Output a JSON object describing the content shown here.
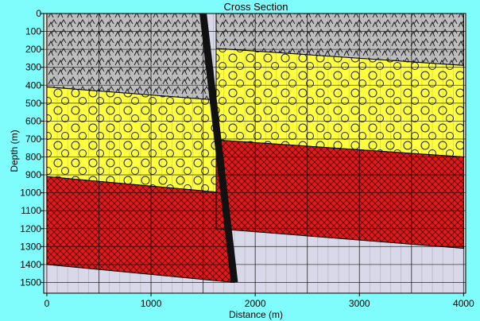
{
  "chart_data": {
    "type": "area",
    "title": "Cross Section",
    "xlabel": "Distance (m)",
    "ylabel": "Depth (m)",
    "xlim": [
      -30,
      4020
    ],
    "ylim": [
      1560,
      0
    ],
    "y_inverted": true,
    "x_ticks": [
      0,
      1000,
      2000,
      3000,
      4000
    ],
    "y_ticks": [
      0,
      100,
      200,
      300,
      400,
      500,
      600,
      700,
      800,
      900,
      1000,
      1100,
      1200,
      1300,
      1400,
      1500
    ],
    "grid": true,
    "colors": {
      "background": "#7ffdfd",
      "plot_area": "#d8d8e8",
      "margin_strip": "#e8e4d8",
      "gray_layer": "#bdbdbd",
      "yellow_layer": "#ffff42",
      "red_layer": "#e81818",
      "fault": "#111111"
    },
    "fault": {
      "top": [
        1500,
        0
      ],
      "bottom": [
        1800,
        1500
      ]
    },
    "layers": [
      {
        "pattern": "gray",
        "polygons": [
          [
            [
              0,
              0
            ],
            [
              1500,
              0
            ],
            [
              1565,
              480
            ],
            [
              0,
              410
            ]
          ],
          [
            [
              1625,
              0
            ],
            [
              4000,
              0
            ],
            [
              4000,
              290
            ],
            [
              1625,
              195
            ]
          ]
        ]
      },
      {
        "pattern": "yellow",
        "polygons": [
          [
            [
              0,
              410
            ],
            [
              1565,
              480
            ],
            [
              1700,
              1000
            ],
            [
              0,
              910
            ]
          ],
          [
            [
              1625,
              195
            ],
            [
              4000,
              290
            ],
            [
              4000,
              800
            ],
            [
              1625,
              705
            ]
          ]
        ]
      },
      {
        "pattern": "red",
        "polygons": [
          [
            [
              0,
              910
            ],
            [
              1700,
              1000
            ],
            [
              1800,
              1500
            ],
            [
              0,
              1400
            ]
          ],
          [
            [
              1625,
              705
            ],
            [
              4000,
              800
            ],
            [
              4000,
              1310
            ],
            [
              1625,
              1200
            ]
          ]
        ]
      }
    ]
  }
}
